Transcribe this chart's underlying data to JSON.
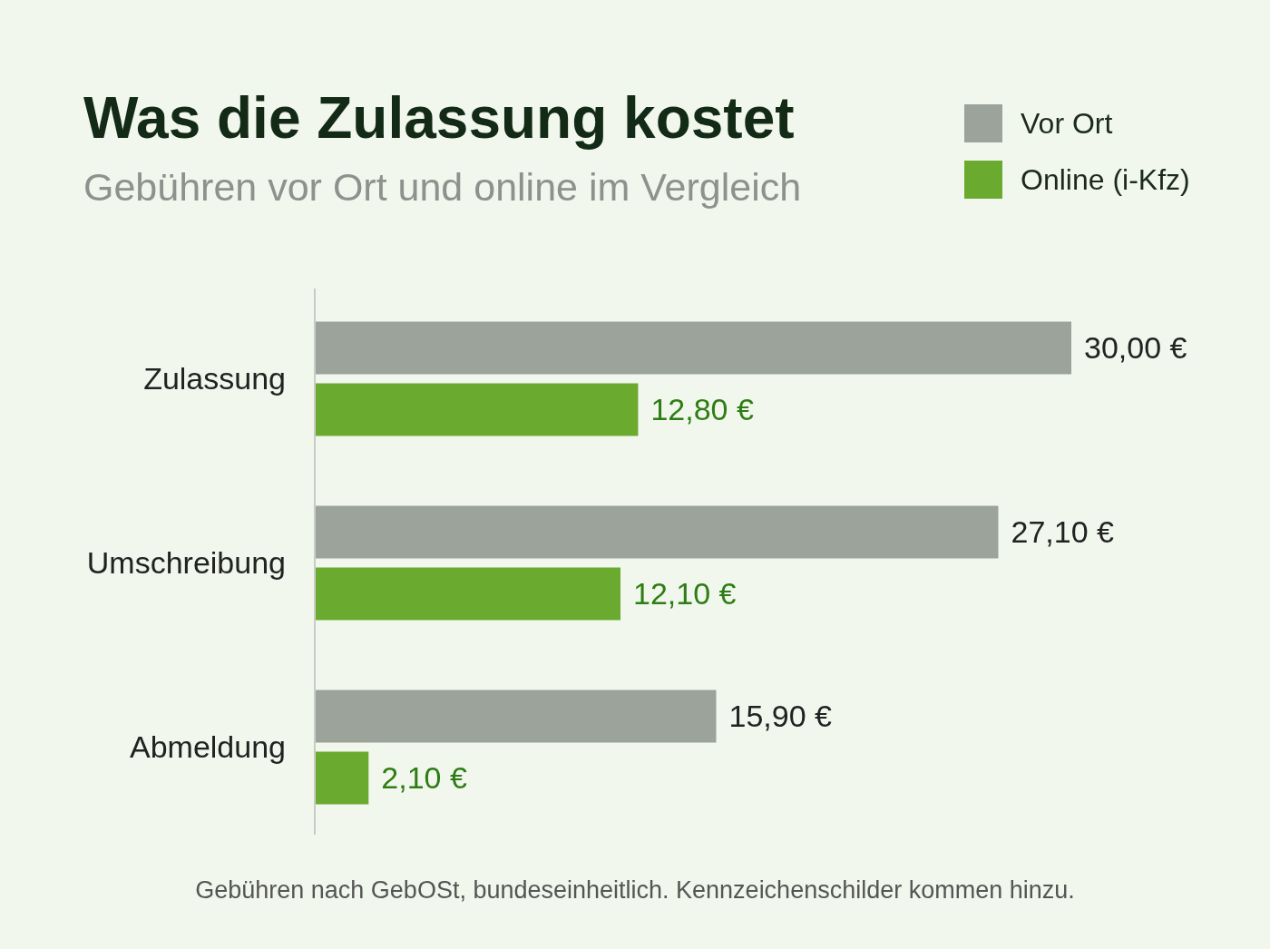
{
  "chart_data": {
    "type": "bar",
    "orientation": "horizontal",
    "title": "Was die Zulassung kostet",
    "subtitle": "Gebühren vor Ort und online im Vergleich",
    "categories": [
      "Zulassung",
      "Umschreibung",
      "Abmeldung"
    ],
    "series": [
      {
        "name": "Vor Ort",
        "color": "#9ba39a",
        "values": [
          30.0,
          27.1,
          15.9
        ],
        "value_labels": [
          "30,00 €",
          "27,10 €",
          "15,90 €"
        ]
      },
      {
        "name": "Online (i-Kfz)",
        "color": "#6aaa2e",
        "values": [
          12.8,
          12.1,
          2.1
        ],
        "value_labels": [
          "12,80 €",
          "12,10 €",
          "2,10 €"
        ]
      }
    ],
    "legend": "top right",
    "annotations": [
      "Gebühren nach GebOSt, bundeseinheitlich. Kennzeichenschilder kommen hinzu."
    ]
  }
}
